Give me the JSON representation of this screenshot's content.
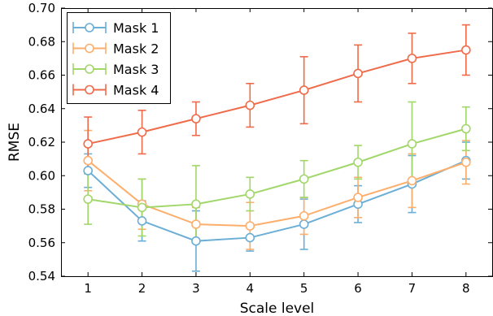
{
  "chart_data": {
    "type": "line",
    "xlabel": "Scale level",
    "ylabel": "RMSE",
    "x": [
      1,
      2,
      3,
      4,
      5,
      6,
      7,
      8
    ],
    "xlim": [
      0.5,
      8.5
    ],
    "ylim": [
      0.54,
      0.7
    ],
    "x_ticks": [
      "1",
      "2",
      "3",
      "4",
      "5",
      "6",
      "7",
      "8"
    ],
    "y_ticks": [
      "0.54",
      "0.56",
      "0.58",
      "0.60",
      "0.62",
      "0.64",
      "0.66",
      "0.68",
      "0.70"
    ],
    "grid": false,
    "legend_position": "top-left",
    "error_bars": true,
    "series": [
      {
        "name": "Mask 1",
        "color": "#6baed6",
        "values": [
          0.603,
          0.573,
          0.561,
          0.563,
          0.571,
          0.583,
          0.595,
          0.609
        ],
        "errors": [
          0.01,
          0.012,
          0.018,
          0.008,
          0.015,
          0.011,
          0.017,
          0.011
        ]
      },
      {
        "name": "Mask 2",
        "color": "#fdae6b",
        "values": [
          0.609,
          0.583,
          0.571,
          0.57,
          0.576,
          0.587,
          0.597,
          0.608
        ],
        "errors": [
          0.018,
          0.015,
          0.01,
          0.014,
          0.011,
          0.012,
          0.016,
          0.013
        ]
      },
      {
        "name": "Mask 3",
        "color": "#a1d76a",
        "values": [
          0.586,
          0.581,
          0.583,
          0.589,
          0.598,
          0.608,
          0.619,
          0.628
        ],
        "errors": [
          0.015,
          0.017,
          0.023,
          0.01,
          0.011,
          0.01,
          0.025,
          0.013
        ]
      },
      {
        "name": "Mask 4",
        "color": "#ef6b4a",
        "values": [
          0.619,
          0.626,
          0.634,
          0.642,
          0.651,
          0.661,
          0.67,
          0.675
        ],
        "errors": [
          0.016,
          0.013,
          0.01,
          0.013,
          0.02,
          0.017,
          0.015,
          0.015
        ]
      }
    ]
  }
}
